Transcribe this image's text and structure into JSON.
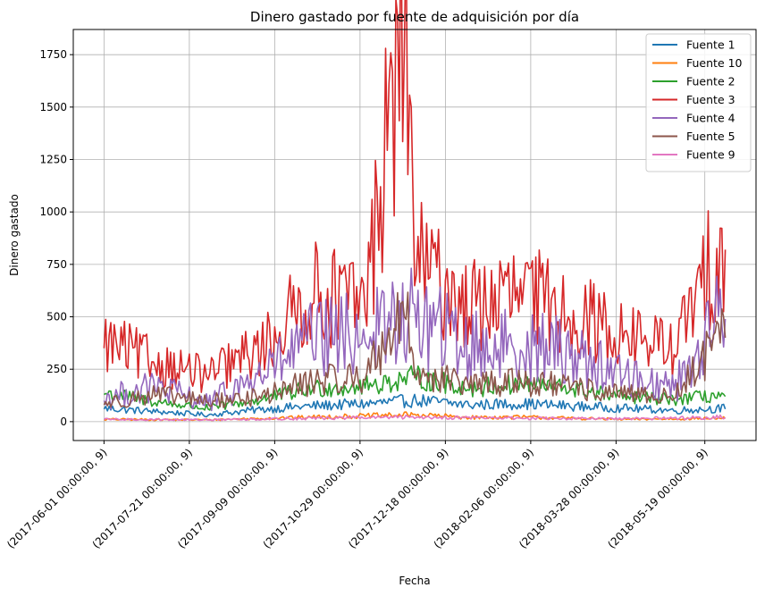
{
  "chart_data": {
    "type": "line",
    "title": "Dinero gastado por fuente de adquisición por día",
    "xlabel": "Fecha",
    "ylabel": "Dinero gastado",
    "x_start": "2017-06-01",
    "x_end": "2018-05-31",
    "x_ticks": [
      "(2017-06-01 00:00:00, 9)",
      "(2017-07-21 00:00:00, 9)",
      "(2017-09-09 00:00:00, 9)",
      "(2017-10-29 00:00:00, 9)",
      "(2017-12-18 00:00:00, 9)",
      "(2018-02-06 00:00:00, 9)",
      "(2018-03-28 00:00:00, 9)",
      "(2018-05-19 00:00:00, 9)"
    ],
    "y_ticks": [
      "0",
      "250",
      "500",
      "750",
      "1000",
      "1250",
      "1500",
      "1750"
    ],
    "ylim": [
      -90,
      1870
    ],
    "grid": true,
    "legend_position": "top-right",
    "series": [
      {
        "name": "Fuente 1",
        "color": "#1f77b4",
        "points": [
          [
            "2017-06-01",
            60
          ],
          [
            "2017-07-01",
            45
          ],
          [
            "2017-08-01",
            30
          ],
          [
            "2017-09-01",
            55
          ],
          [
            "2017-10-01",
            70
          ],
          [
            "2017-11-01",
            80
          ],
          [
            "2017-12-01",
            95
          ],
          [
            "2018-01-01",
            75
          ],
          [
            "2018-02-01",
            80
          ],
          [
            "2018-03-01",
            70
          ],
          [
            "2018-04-01",
            60
          ],
          [
            "2018-05-01",
            50
          ],
          [
            "2018-05-31",
            60
          ]
        ]
      },
      {
        "name": "Fuente 10",
        "color": "#ff7f0e",
        "points": [
          [
            "2017-06-01",
            10
          ],
          [
            "2017-08-01",
            8
          ],
          [
            "2017-10-01",
            20
          ],
          [
            "2017-11-01",
            25
          ],
          [
            "2017-12-01",
            30
          ],
          [
            "2018-01-01",
            18
          ],
          [
            "2018-02-01",
            20
          ],
          [
            "2018-03-01",
            15
          ],
          [
            "2018-04-01",
            10
          ],
          [
            "2018-05-31",
            15
          ]
        ]
      },
      {
        "name": "Fuente 2",
        "color": "#2ca02c",
        "points": [
          [
            "2017-06-01",
            130
          ],
          [
            "2017-07-01",
            90
          ],
          [
            "2017-08-01",
            60
          ],
          [
            "2017-09-01",
            100
          ],
          [
            "2017-10-01",
            150
          ],
          [
            "2017-11-01",
            160
          ],
          [
            "2017-12-01",
            200
          ],
          [
            "2018-01-01",
            150
          ],
          [
            "2018-02-01",
            170
          ],
          [
            "2018-03-01",
            150
          ],
          [
            "2018-04-01",
            110
          ],
          [
            "2018-05-01",
            100
          ],
          [
            "2018-05-31",
            120
          ]
        ]
      },
      {
        "name": "Fuente 3",
        "color": "#d62728",
        "points": [
          [
            "2017-06-01",
            350
          ],
          [
            "2017-07-01",
            260
          ],
          [
            "2017-08-01",
            200
          ],
          [
            "2017-09-01",
            320
          ],
          [
            "2017-10-01",
            560
          ],
          [
            "2017-11-01",
            520
          ],
          [
            "2017-11-24",
            1785
          ],
          [
            "2017-12-01",
            700
          ],
          [
            "2018-01-01",
            500
          ],
          [
            "2018-02-01",
            560
          ],
          [
            "2018-03-01",
            480
          ],
          [
            "2018-04-01",
            380
          ],
          [
            "2018-05-01",
            320
          ],
          [
            "2018-05-31",
            820
          ]
        ]
      },
      {
        "name": "Fuente 4",
        "color": "#9467bd",
        "points": [
          [
            "2017-06-01",
            100
          ],
          [
            "2017-07-01",
            150
          ],
          [
            "2017-08-01",
            80
          ],
          [
            "2017-09-01",
            200
          ],
          [
            "2017-10-01",
            350
          ],
          [
            "2017-11-01",
            380
          ],
          [
            "2017-12-01",
            450
          ],
          [
            "2018-01-01",
            320
          ],
          [
            "2018-02-01",
            330
          ],
          [
            "2018-03-01",
            300
          ],
          [
            "2018-04-01",
            200
          ],
          [
            "2018-05-01",
            150
          ],
          [
            "2018-05-31",
            490
          ]
        ]
      },
      {
        "name": "Fuente 5",
        "color": "#8c564b",
        "points": [
          [
            "2017-06-01",
            80
          ],
          [
            "2017-07-01",
            120
          ],
          [
            "2017-08-01",
            90
          ],
          [
            "2017-09-01",
            110
          ],
          [
            "2017-10-01",
            180
          ],
          [
            "2017-11-01",
            200
          ],
          [
            "2017-11-24",
            500
          ],
          [
            "2017-12-01",
            220
          ],
          [
            "2018-01-01",
            160
          ],
          [
            "2018-02-01",
            180
          ],
          [
            "2018-03-01",
            150
          ],
          [
            "2018-04-01",
            120
          ],
          [
            "2018-05-01",
            110
          ],
          [
            "2018-05-31",
            400
          ]
        ]
      },
      {
        "name": "Fuente 9",
        "color": "#e377c2",
        "points": [
          [
            "2017-06-01",
            10
          ],
          [
            "2017-08-01",
            8
          ],
          [
            "2017-10-01",
            15
          ],
          [
            "2017-12-01",
            20
          ],
          [
            "2018-02-01",
            15
          ],
          [
            "2018-04-01",
            12
          ],
          [
            "2018-05-31",
            20
          ]
        ]
      }
    ]
  }
}
